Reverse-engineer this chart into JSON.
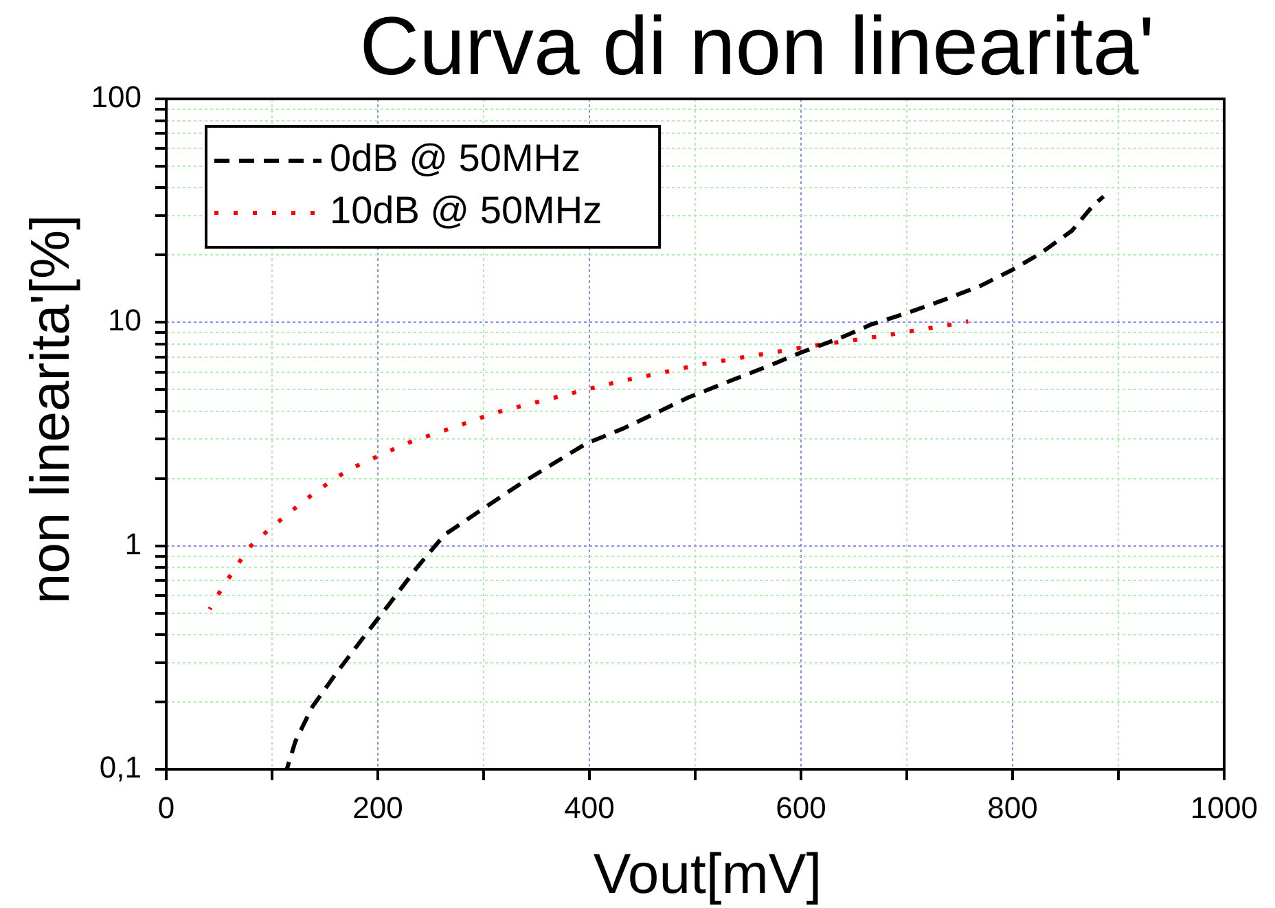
{
  "chart_data": {
    "type": "line",
    "title": "Curva di non linearita'",
    "xlabel": "Vout[mV]",
    "ylabel": "non linearita'[%]",
    "xlim": [
      0,
      1000
    ],
    "xticks": [
      0,
      {
        "value": 100,
        "label": null
      },
      200,
      {
        "value": 300,
        "label": null
      },
      400,
      {
        "value": 500,
        "label": null
      },
      600,
      {
        "value": 700,
        "label": null
      },
      800,
      {
        "value": 900,
        "label": null
      },
      1000
    ],
    "ylim": [
      0.1,
      100
    ],
    "yticks": [
      {
        "value": 0.1,
        "label": "0,1"
      },
      {
        "value": 0.2,
        "label": null
      },
      {
        "value": 0.3,
        "label": null
      },
      {
        "value": 0.4,
        "label": null
      },
      {
        "value": 0.5,
        "label": null
      },
      {
        "value": 0.6,
        "label": null
      },
      {
        "value": 0.7,
        "label": null
      },
      {
        "value": 0.8,
        "label": null
      },
      {
        "value": 0.9,
        "label": null
      },
      1,
      {
        "value": 2,
        "label": null
      },
      {
        "value": 3,
        "label": null
      },
      {
        "value": 4,
        "label": null
      },
      {
        "value": 5,
        "label": null
      },
      {
        "value": 6,
        "label": null
      },
      {
        "value": 7,
        "label": null
      },
      {
        "value": 8,
        "label": null
      },
      {
        "value": 9,
        "label": null
      },
      10,
      {
        "value": 20,
        "label": null
      },
      {
        "value": 30,
        "label": null
      },
      {
        "value": 40,
        "label": null
      },
      {
        "value": 50,
        "label": null
      },
      {
        "value": 60,
        "label": null
      },
      {
        "value": 70,
        "label": null
      },
      {
        "value": 80,
        "label": null
      },
      {
        "value": 90,
        "label": null
      },
      100
    ],
    "log": "y",
    "grid": true,
    "legend": "top left",
    "marker": "none",
    "series": [
      {
        "name": "0dB @ 50MHz",
        "color": "#000000",
        "line_style": "dashed",
        "x": [
          114,
          122,
          138,
          161,
          190,
          211,
          237,
          263,
          298,
          333,
          365,
          397,
          432,
          464,
          493,
          536,
          570,
          601,
          636,
          666,
          700,
          735,
          770,
          800,
          826,
          856,
          876,
          886
        ],
        "values": [
          0.1,
          0.133,
          0.19,
          0.27,
          0.41,
          0.55,
          0.8,
          1.12,
          1.45,
          1.87,
          2.32,
          2.87,
          3.35,
          3.95,
          4.6,
          5.54,
          6.4,
          7.36,
          8.47,
          9.77,
          11,
          12.6,
          14.6,
          17.2,
          20.3,
          25.7,
          33.3,
          36.6
        ]
      },
      {
        "name": "10dB @ 50MHz",
        "color": "#ff0000",
        "line_style": "dotted",
        "x": [
          41,
          53,
          65,
          78,
          96,
          115,
          134,
          154,
          173,
          193,
          212,
          232,
          271,
          310,
          349,
          388,
          427,
          466,
          504,
          543,
          583,
          622,
          661,
          700,
          739,
          758
        ],
        "values": [
          0.52,
          0.65,
          0.79,
          0.98,
          1.17,
          1.39,
          1.64,
          1.92,
          2.2,
          2.43,
          2.67,
          2.93,
          3.38,
          3.93,
          4.38,
          4.88,
          5.42,
          5.92,
          6.47,
          6.95,
          7.46,
          8.0,
          8.47,
          9.06,
          9.72,
          10.1
        ]
      }
    ]
  }
}
